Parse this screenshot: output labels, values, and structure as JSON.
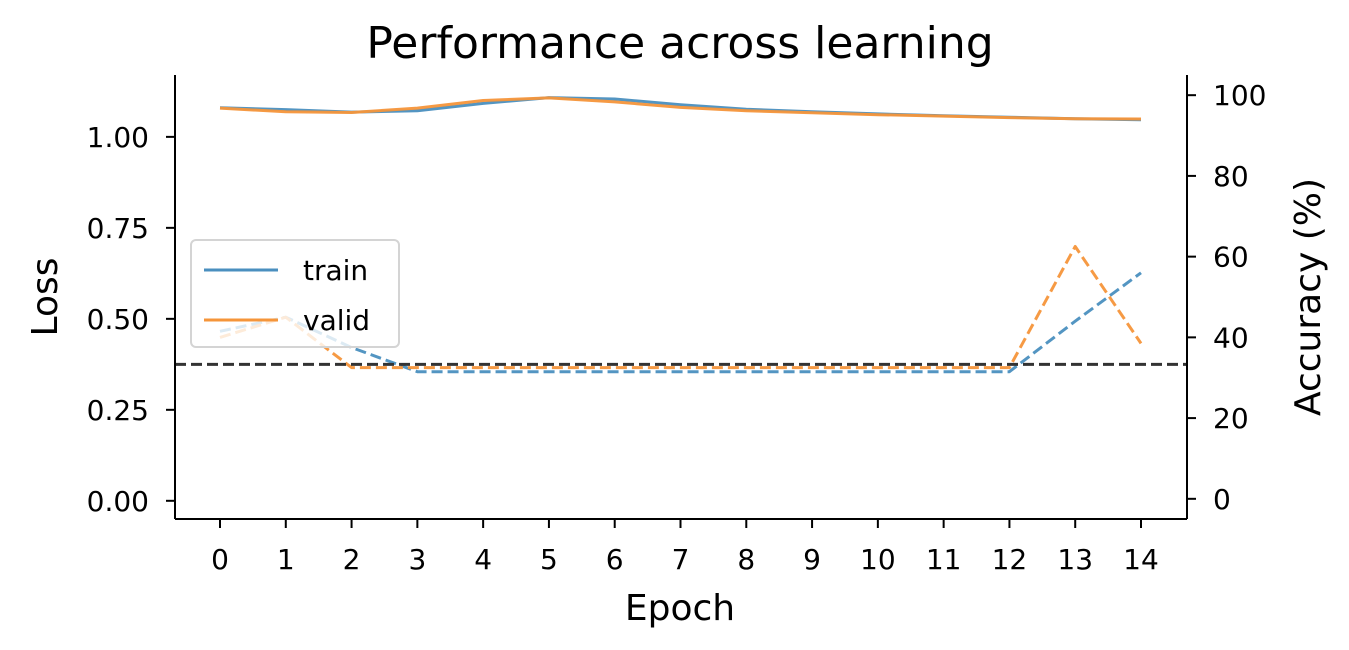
{
  "chart_data": {
    "type": "line",
    "title": "Performance across learning",
    "xlabel": "Epoch",
    "ylabel_left": "Loss",
    "ylabel_right": "Accuracy (%)",
    "x": [
      0,
      1,
      2,
      3,
      4,
      5,
      6,
      7,
      8,
      9,
      10,
      11,
      12,
      13,
      14
    ],
    "xticks": [
      "0",
      "1",
      "2",
      "3",
      "4",
      "5",
      "6",
      "7",
      "8",
      "9",
      "10",
      "11",
      "12",
      "13",
      "14"
    ],
    "ylim_left": [
      -0.05,
      1.17
    ],
    "yticks_left": [
      "0.00",
      "0.25",
      "0.50",
      "0.75",
      "1.00"
    ],
    "yticks_left_values": [
      0,
      0.25,
      0.5,
      0.75,
      1.0
    ],
    "ylim_right": [
      -5,
      105
    ],
    "yticks_right": [
      "0",
      "20",
      "40",
      "60",
      "80",
      "100"
    ],
    "yticks_right_values": [
      0,
      20,
      40,
      60,
      80,
      100
    ],
    "legend_location": "center-left",
    "colors": {
      "train": "#4a8fbf",
      "valid": "#f5953a",
      "chance": "#333333"
    },
    "series": [
      {
        "name": "train",
        "axis": "left",
        "style": "solid",
        "values": [
          1.08,
          1.075,
          1.068,
          1.072,
          1.092,
          1.108,
          1.104,
          1.088,
          1.076,
          1.069,
          1.063,
          1.058,
          1.054,
          1.05,
          1.047
        ]
      },
      {
        "name": "valid",
        "axis": "left",
        "style": "solid",
        "values": [
          1.079,
          1.069,
          1.067,
          1.079,
          1.1,
          1.107,
          1.096,
          1.081,
          1.072,
          1.066,
          1.061,
          1.057,
          1.053,
          1.05,
          1.049
        ]
      },
      {
        "name": "train",
        "axis": "right",
        "style": "dashed",
        "values": [
          41.5,
          45,
          37.5,
          31.5,
          31.5,
          31.5,
          31.5,
          31.5,
          31.5,
          31.5,
          31.5,
          31.5,
          31.5,
          44,
          56
        ]
      },
      {
        "name": "valid",
        "axis": "right",
        "style": "dashed",
        "values": [
          40,
          45,
          32.5,
          32.5,
          32.5,
          32.5,
          32.5,
          32.5,
          32.5,
          32.5,
          32.5,
          32.5,
          32.5,
          62.5,
          38.5
        ]
      }
    ],
    "hline": {
      "axis": "right",
      "value": 33.3,
      "style": "dashed"
    },
    "legend": [
      "train",
      "valid"
    ]
  }
}
